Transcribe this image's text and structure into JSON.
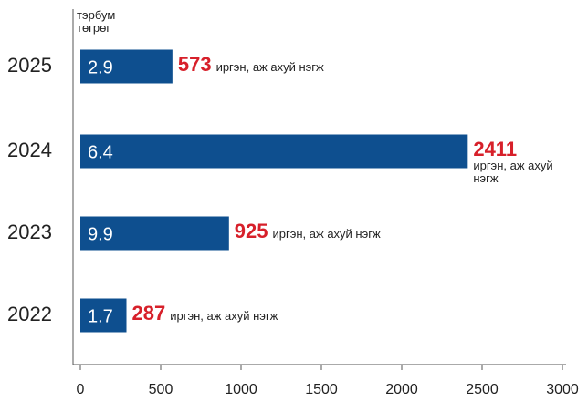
{
  "chart_data": {
    "type": "hbar",
    "unit_label": "тэрбум төгрөг",
    "categories": [
      "2025",
      "2024",
      "2023",
      "2022"
    ],
    "values": [
      573,
      2411,
      925,
      287
    ],
    "amounts": [
      2.9,
      6.4,
      9.9,
      1.7
    ],
    "annotation": "иргэн, аж ахуй нэгж",
    "color": "#0e4f8f",
    "label_color": "#d7202a",
    "xlim": [
      0,
      3000
    ],
    "xticks": [
      0,
      500,
      1000,
      1500,
      2000,
      2500,
      3000
    ]
  }
}
